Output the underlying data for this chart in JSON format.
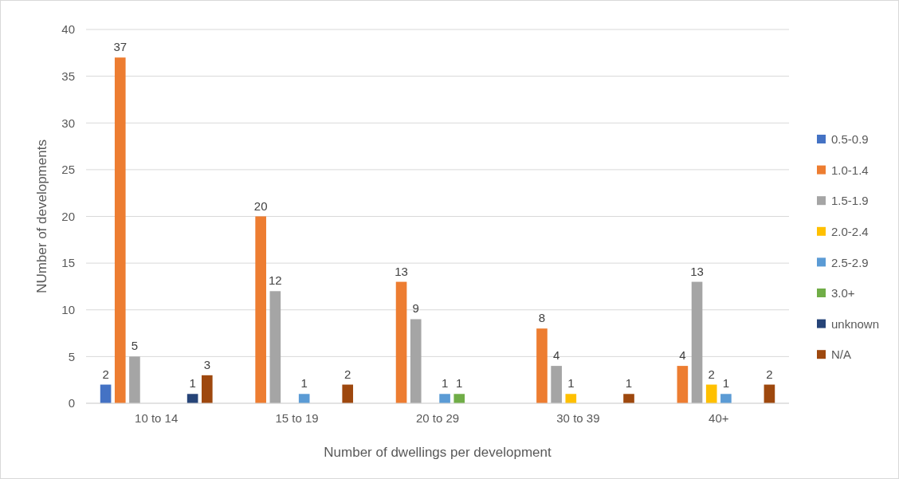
{
  "chart_data": {
    "type": "bar",
    "xlabel": "Number of dwellings per development",
    "ylabel": "NUmber of developments",
    "categories": [
      "10 to 14",
      "15 to 19",
      "20 to 29",
      "30 to 39",
      "40+"
    ],
    "series": [
      {
        "name": "0.5-0.9",
        "color": "#4472c4",
        "values": [
          2,
          null,
          null,
          null,
          null
        ]
      },
      {
        "name": "1.0-1.4",
        "color": "#ed7d31",
        "values": [
          37,
          20,
          13,
          8,
          4
        ]
      },
      {
        "name": "1.5-1.9",
        "color": "#a5a5a5",
        "values": [
          5,
          12,
          9,
          4,
          13
        ]
      },
      {
        "name": "2.0-2.4",
        "color": "#ffc000",
        "values": [
          null,
          null,
          null,
          1,
          2
        ]
      },
      {
        "name": "2.5-2.9",
        "color": "#5b9bd5",
        "values": [
          null,
          1,
          1,
          null,
          1
        ]
      },
      {
        "name": "3.0+",
        "color": "#70ad47",
        "values": [
          null,
          null,
          1,
          null,
          null
        ]
      },
      {
        "name": "unknown",
        "color": "#264478",
        "values": [
          1,
          null,
          null,
          null,
          null
        ]
      },
      {
        "name": "N/A",
        "color": "#9e480e",
        "values": [
          3,
          2,
          null,
          1,
          2
        ]
      }
    ],
    "ylim": [
      0,
      40
    ],
    "yticks": [
      0,
      5,
      10,
      15,
      20,
      25,
      30,
      35,
      40
    ],
    "grid": "y",
    "legend": "right",
    "data_labels": true
  }
}
